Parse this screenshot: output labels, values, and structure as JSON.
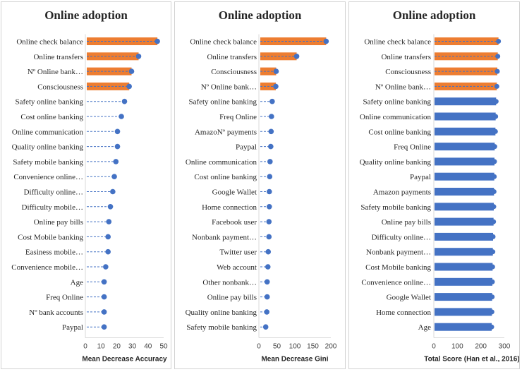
{
  "chart_data": [
    {
      "type": "lollipop",
      "title": "Online adoption",
      "xlabel": "Mean Decrease Accuracy",
      "xlim": [
        0,
        50
      ],
      "xticks": [
        0,
        10,
        20,
        30,
        40,
        50
      ],
      "highlight_color": "#ED7D31",
      "point_color": "#4472C4",
      "categories": [
        "Online check balance",
        "Online transfers",
        "Nº Online bank…",
        "Consciousness",
        "Safety online banking",
        "Cost online banking",
        "Online communication",
        "Quality online banking",
        "Safety mobile banking",
        "Convenience online…",
        "Difficulty online…",
        "Difficulty mobile…",
        "Online pay bills",
        "Cost Mobile banking",
        "Easiness mobile…",
        "Convenience mobile…",
        "Age",
        "Freq Online",
        "Nº bank accounts",
        "Paypal"
      ],
      "values": [
        46,
        34,
        29.5,
        28,
        25,
        23,
        20.5,
        20.5,
        19.5,
        18.5,
        17.5,
        16,
        15,
        14.5,
        14.5,
        13,
        12,
        12,
        12,
        12
      ],
      "highlighted": [
        true,
        true,
        true,
        true,
        false,
        false,
        false,
        false,
        false,
        false,
        false,
        false,
        false,
        false,
        false,
        false,
        false,
        false,
        false,
        false
      ]
    },
    {
      "type": "lollipop",
      "title": "Online adoption",
      "xlabel": "Mean Decrease Gini",
      "xlim": [
        0,
        200
      ],
      "xticks": [
        0,
        50,
        100,
        150,
        200
      ],
      "highlight_color": "#ED7D31",
      "point_color": "#4472C4",
      "categories": [
        "Online check balance",
        "Online transfers",
        "Consciousness",
        "Nº Online bank…",
        "Safety online banking",
        "Freq Online",
        "AmazoNº payments",
        "Paypal",
        "Online communication",
        "Cost online banking",
        "Google Wallet",
        "Home connection",
        "Facebook user",
        "Nonbank payment…",
        "Twitter user",
        "Web account",
        "Other nonbank…",
        "Online pay bills",
        "Quality online banking",
        "Safety mobile banking"
      ],
      "values": [
        187,
        105,
        48,
        47,
        37,
        35,
        34,
        33,
        31,
        30,
        29,
        29,
        28,
        28,
        26,
        25,
        23,
        23,
        22,
        19
      ],
      "highlighted": [
        true,
        true,
        true,
        true,
        false,
        false,
        false,
        false,
        false,
        false,
        false,
        false,
        false,
        false,
        false,
        false,
        false,
        false,
        false,
        false
      ]
    },
    {
      "type": "bar",
      "title": "Online adoption",
      "xlabel": "Total Score (Han et al., 2016)",
      "xlim": [
        0,
        300
      ],
      "xticks": [
        0,
        100,
        200,
        300
      ],
      "highlight_color": "#ED7D31",
      "point_color": "#4472C4",
      "categories": [
        "Online check balance",
        "Online transfers",
        "Consciousness",
        "Nº Online bank…",
        "Safety online banking",
        "Online communication",
        "Cost online banking",
        "Freq Online",
        "Quality online banking",
        "Paypal",
        "Amazon payments",
        "Safety mobile banking",
        "Online pay bills",
        "Difficulty online…",
        "Nonbank payment…",
        "Cost Mobile banking",
        "Convenience online…",
        "Google Wallet",
        "Home connection",
        "Age"
      ],
      "values": [
        275,
        272,
        270,
        268,
        265,
        263,
        262,
        259,
        258,
        257,
        256,
        255,
        254,
        252,
        251,
        250,
        249,
        248,
        247,
        246
      ],
      "highlighted": [
        true,
        true,
        true,
        true,
        false,
        false,
        false,
        false,
        false,
        false,
        false,
        false,
        false,
        false,
        false,
        false,
        false,
        false,
        false,
        false
      ]
    }
  ]
}
